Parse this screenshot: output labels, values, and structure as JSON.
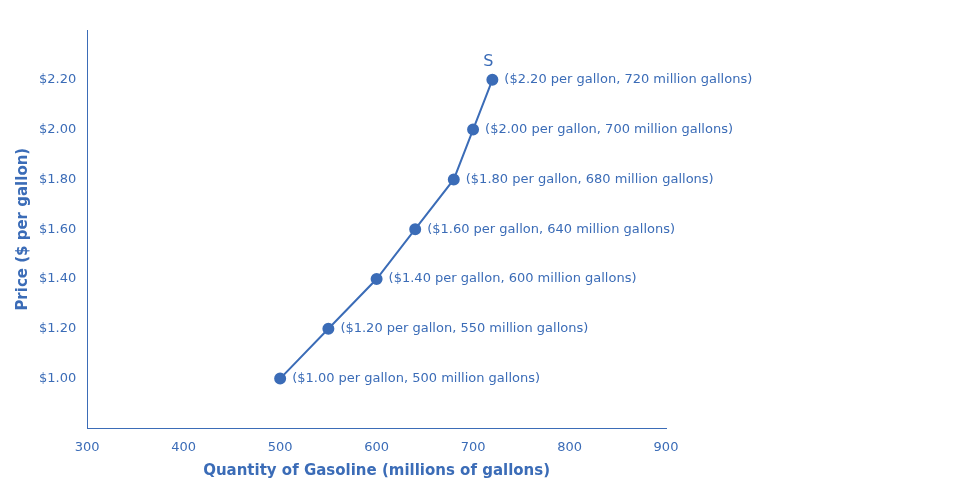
{
  "chart_data": {
    "type": "line",
    "x": [
      500,
      550,
      600,
      640,
      680,
      700,
      720
    ],
    "series": [
      {
        "name": "S",
        "color": "#3B6CB7",
        "values": [
          1.0,
          1.2,
          1.4,
          1.6,
          1.8,
          2.0,
          2.2
        ]
      }
    ],
    "annotations": [
      "($1.00 per gallon, 500 million gallons)",
      "($1.20 per gallon, 550 million gallons)",
      "($1.40 per gallon, 600 million gallons)",
      "($1.60 per gallon, 640 million gallons)",
      "($1.80 per gallon, 680 million gallons)",
      "($2.00 per gallon, 700 million gallons)",
      "($2.20 per gallon, 720 million gallons)"
    ],
    "xlabel": "Quantity of Gasoline (millions of gallons)",
    "ylabel": "Price ($ per gallon)",
    "xlim": [
      300,
      900
    ],
    "ylim": [
      0.8,
      2.4
    ],
    "xticks": [
      300,
      400,
      500,
      600,
      700,
      800,
      900
    ],
    "yticks": [
      {
        "value": 1.0,
        "label": "$1.00"
      },
      {
        "value": 1.2,
        "label": "$1.20"
      },
      {
        "value": 1.4,
        "label": "$1.40"
      },
      {
        "value": 1.6,
        "label": "$1.60"
      },
      {
        "value": 1.8,
        "label": "$1.80"
      },
      {
        "value": 2.0,
        "label": "$2.00"
      },
      {
        "value": 2.2,
        "label": "$2.20"
      }
    ],
    "grid": false,
    "marker": "circle"
  }
}
